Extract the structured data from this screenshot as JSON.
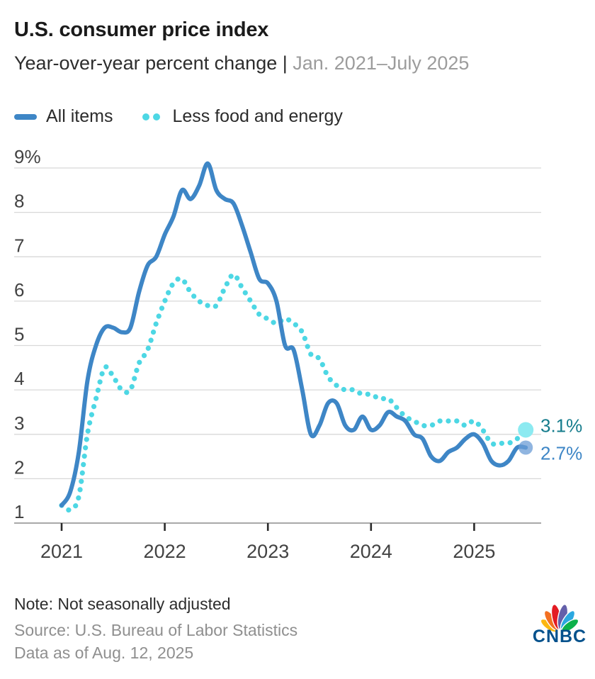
{
  "header": {
    "title": "U.S. consumer price index",
    "subtitle": "Year-over-year percent change |",
    "subtitle_range": " Jan. 2021–July 2025"
  },
  "chart_data": {
    "type": "line",
    "x_start": "2021-01",
    "x_end": "2025-07",
    "x_frequency": "monthly",
    "x_tick_labels": [
      "2021",
      "2022",
      "2023",
      "2024",
      "2025"
    ],
    "y_tick_labels": [
      "9%",
      "8",
      "7",
      "6",
      "5",
      "4",
      "3",
      "2",
      "1"
    ],
    "ylim": [
      1,
      9
    ],
    "grid": true,
    "legend_position": "top",
    "series": [
      {
        "name": "All items",
        "style": "solid",
        "color": "#3E86C6",
        "end_label": "2.7%",
        "end_label_color": "#3E86C6",
        "marker_color": "rgba(107,156,213,0.75)",
        "marker_r": 10,
        "label_dy": 17,
        "values": [
          1.4,
          1.7,
          2.6,
          4.2,
          5.0,
          5.4,
          5.4,
          5.3,
          5.4,
          6.2,
          6.8,
          7.0,
          7.5,
          7.9,
          8.5,
          8.3,
          8.6,
          9.1,
          8.5,
          8.3,
          8.2,
          7.7,
          7.1,
          6.5,
          6.4,
          6.0,
          5.0,
          4.9,
          4.0,
          3.0,
          3.2,
          3.7,
          3.7,
          3.2,
          3.1,
          3.4,
          3.1,
          3.2,
          3.5,
          3.4,
          3.3,
          3.0,
          2.9,
          2.5,
          2.4,
          2.6,
          2.7,
          2.9,
          3.0,
          2.8,
          2.4,
          2.3,
          2.4,
          2.7,
          2.7
        ]
      },
      {
        "name": "Less food and energy",
        "style": "dotted",
        "color": "#4DD7E4",
        "end_label": "3.1%",
        "end_label_color": "#157C8C",
        "marker_color": "#8CEAF1",
        "marker_r": 11,
        "label_dy": 3,
        "values": [
          1.4,
          1.3,
          1.6,
          3.0,
          3.8,
          4.5,
          4.3,
          4.0,
          4.0,
          4.6,
          4.9,
          5.5,
          6.0,
          6.4,
          6.5,
          6.2,
          6.0,
          5.9,
          5.9,
          6.3,
          6.6,
          6.3,
          6.0,
          5.7,
          5.6,
          5.5,
          5.6,
          5.5,
          5.3,
          4.8,
          4.7,
          4.3,
          4.1,
          4.0,
          4.0,
          3.9,
          3.9,
          3.8,
          3.8,
          3.6,
          3.4,
          3.3,
          3.2,
          3.2,
          3.3,
          3.3,
          3.3,
          3.2,
          3.3,
          3.1,
          2.8,
          2.8,
          2.8,
          2.9,
          3.1
        ]
      }
    ]
  },
  "footer": {
    "note": "Note: Not seasonally adjusted",
    "source": "Source: U.S. Bureau of Labor Statistics",
    "data_as_of": "Data as of Aug. 12, 2025"
  },
  "branding": {
    "wordmark": "CNBC",
    "wordmark_color": "#04518C",
    "peacock_colors": [
      "#FCB711",
      "#F37021",
      "#E31B23",
      "#6460AA",
      "#2BA8E0",
      "#0DB14B"
    ]
  }
}
